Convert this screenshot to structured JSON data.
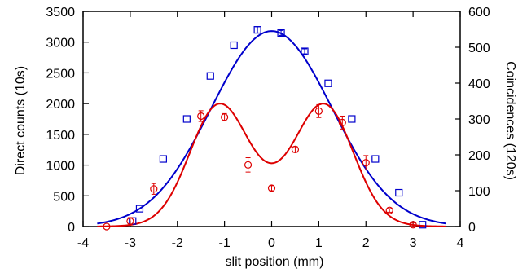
{
  "chart_data": {
    "type": "scatter",
    "xlabel": "slit position (mm)",
    "ylabel_left": "Direct counts (10s)",
    "ylabel_right": "Coincidences (120s)",
    "xlim": [
      -4,
      4
    ],
    "ylim_left": [
      0,
      3500
    ],
    "ylim_right": [
      0,
      600
    ],
    "xticks": [
      -4,
      -3,
      -2,
      -1,
      0,
      1,
      2,
      3,
      4
    ],
    "yticks_left": [
      0,
      500,
      1000,
      1500,
      2000,
      2500,
      3000,
      3500
    ],
    "yticks_right": [
      0,
      100,
      200,
      300,
      400,
      500,
      600
    ],
    "grid": false,
    "legend": "none",
    "series": [
      {
        "axis": "left",
        "marker": "square",
        "color": "#0000cc",
        "points": [
          {
            "x": -2.95,
            "y": 90
          },
          {
            "x": -2.8,
            "y": 290
          },
          {
            "x": -2.3,
            "y": 1100
          },
          {
            "x": -1.8,
            "y": 1750
          },
          {
            "x": -1.3,
            "y": 2450
          },
          {
            "x": -0.8,
            "y": 2950
          },
          {
            "x": -0.3,
            "y": 3200,
            "err": 50
          },
          {
            "x": 0.2,
            "y": 3150,
            "err": 40
          },
          {
            "x": 0.7,
            "y": 2850,
            "err": 40
          },
          {
            "x": 1.2,
            "y": 2330
          },
          {
            "x": 1.7,
            "y": 1750
          },
          {
            "x": 2.2,
            "y": 1100
          },
          {
            "x": 2.7,
            "y": 550
          },
          {
            "x": 3.2,
            "y": 30
          }
        ]
      },
      {
        "axis": "left",
        "type": "line",
        "color": "#0000cc",
        "fit": {
          "amplitude": 3180,
          "center": 0,
          "sigma": 1.28
        }
      },
      {
        "axis": "right",
        "marker": "circle",
        "color": "#dd0000",
        "points": [
          {
            "x": -3.5,
            "y": 0,
            "err": 0
          },
          {
            "x": -3.0,
            "y": 15,
            "err": 10
          },
          {
            "x": -2.5,
            "y": 105,
            "err": 15
          },
          {
            "x": -1.5,
            "y": 308,
            "err": 15
          },
          {
            "x": -1.0,
            "y": 305,
            "err": 10
          },
          {
            "x": -0.5,
            "y": 172,
            "err": 20
          },
          {
            "x": 0.0,
            "y": 107,
            "err": 7
          },
          {
            "x": 0.5,
            "y": 215,
            "err": 8
          },
          {
            "x": 1.0,
            "y": 322,
            "err": 18
          },
          {
            "x": 1.5,
            "y": 290,
            "err": 18
          },
          {
            "x": 2.0,
            "y": 178,
            "err": 20
          },
          {
            "x": 2.5,
            "y": 45,
            "err": 5
          },
          {
            "x": 3.0,
            "y": 5,
            "err": 5
          }
        ]
      },
      {
        "axis": "right",
        "type": "line",
        "color": "#dd0000",
        "fit": {
          "amplitude": 345,
          "center_left": -1.15,
          "center_right": 1.15,
          "sigma": 0.6,
          "base": 80,
          "base_sigma": 1.1
        }
      }
    ]
  }
}
